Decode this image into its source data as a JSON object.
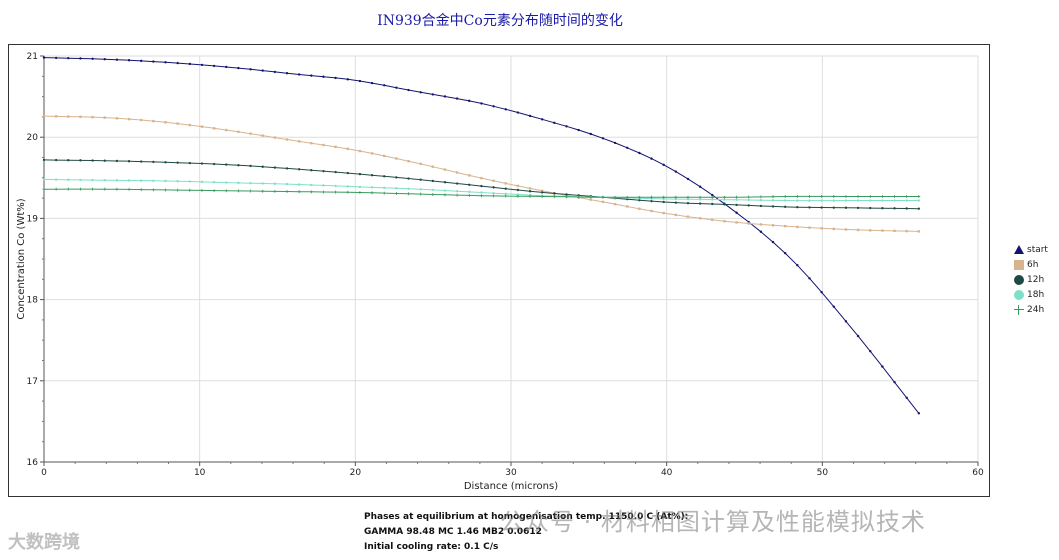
{
  "chart_data": {
    "type": "line",
    "title": "IN939合金中Co元素分布随时间的变化",
    "xlabel": "Distance (microns)",
    "ylabel": "Concentration Co (Wt%)",
    "xlim": [
      0,
      60
    ],
    "ylim": [
      16,
      21
    ],
    "x_ticks": [
      0,
      10,
      20,
      30,
      40,
      50,
      60
    ],
    "y_ticks": [
      16,
      17,
      18,
      19,
      20,
      21
    ],
    "grid": true,
    "legend_position": "right",
    "x": [
      0,
      4,
      8,
      12,
      16,
      20,
      24,
      28,
      32,
      36,
      40,
      44,
      48,
      52,
      56.2
    ],
    "series": [
      {
        "name": "start",
        "color": "#14146e",
        "marker": "triangle",
        "values": [
          20.98,
          20.96,
          20.92,
          20.86,
          20.78,
          20.7,
          20.56,
          20.42,
          20.22,
          19.98,
          19.64,
          19.14,
          18.5,
          17.62,
          16.6
        ]
      },
      {
        "name": "6h",
        "color": "#d8b48e",
        "marker": "square",
        "values": [
          20.26,
          20.24,
          20.18,
          20.08,
          19.96,
          19.84,
          19.68,
          19.5,
          19.34,
          19.2,
          19.06,
          18.96,
          18.9,
          18.86,
          18.84
        ]
      },
      {
        "name": "12h",
        "color": "#1f4a44",
        "marker": "circle",
        "values": [
          19.72,
          19.71,
          19.69,
          19.66,
          19.61,
          19.55,
          19.48,
          19.4,
          19.32,
          19.26,
          19.2,
          19.17,
          19.14,
          19.13,
          19.12
        ]
      },
      {
        "name": "18h",
        "color": "#7fe0c8",
        "marker": "circle",
        "values": [
          19.48,
          19.47,
          19.46,
          19.44,
          19.42,
          19.39,
          19.36,
          19.32,
          19.28,
          19.26,
          19.24,
          19.23,
          19.22,
          19.22,
          19.22
        ]
      },
      {
        "name": "24h",
        "color": "#3a9a5e",
        "marker": "plus",
        "values": [
          19.36,
          19.36,
          19.35,
          19.34,
          19.33,
          19.32,
          19.3,
          19.28,
          19.27,
          19.26,
          19.26,
          19.26,
          19.27,
          19.27,
          19.27
        ]
      }
    ]
  },
  "footer": {
    "line1": "Phases at equilibrium at homogenisation temp. 1150.0 C (At%):",
    "line2": "GAMMA 98.48   MC 1.46   MB2 0.0612",
    "line3": "Initial cooling rate: 0.1 C/s"
  },
  "watermark": {
    "right": "公众号 · 材料相图计算及性能模拟技术",
    "left": "大数跨境"
  }
}
